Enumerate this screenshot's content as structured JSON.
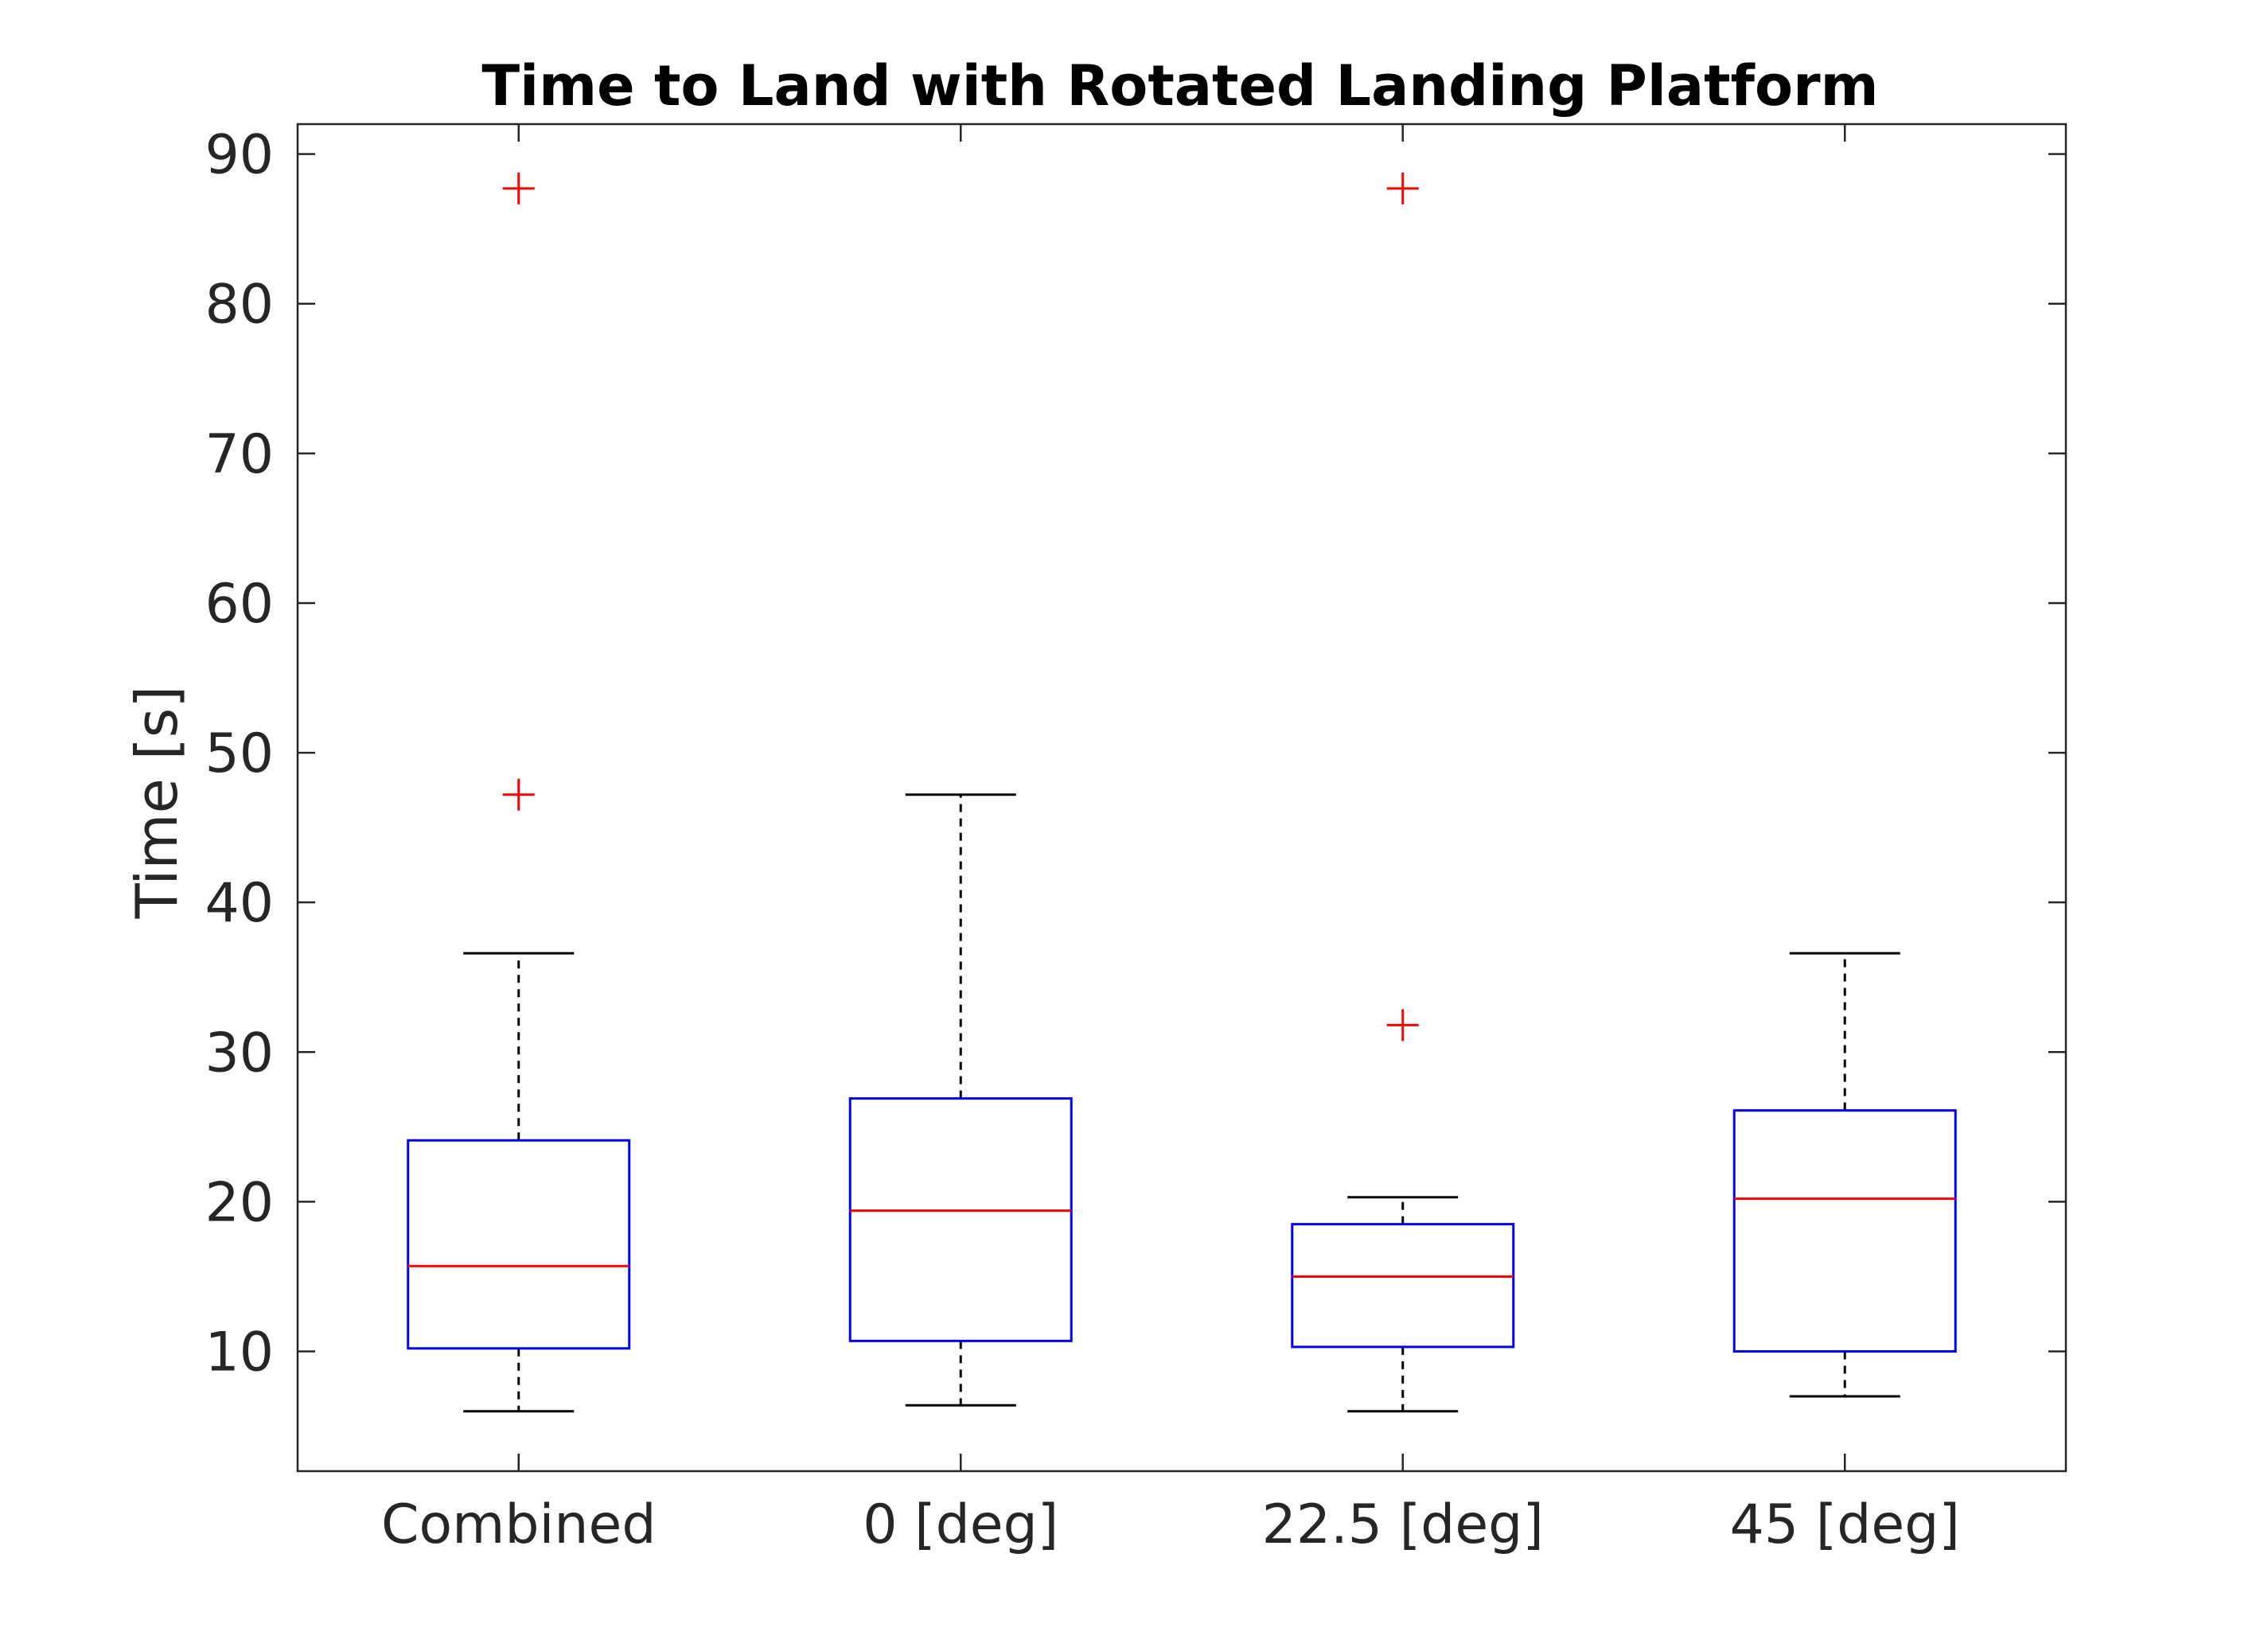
{
  "chart_data": {
    "type": "box",
    "title": "Time to Land with Rotated Landing Platform",
    "xlabel": "",
    "ylabel": "Time [s]",
    "ylim": [
      2,
      92
    ],
    "yticks": [
      10,
      20,
      30,
      40,
      50,
      60,
      70,
      80,
      90
    ],
    "ytick_labels": [
      "10",
      "20",
      "30",
      "40",
      "50",
      "60",
      "70",
      "80",
      "90"
    ],
    "categories": [
      "Combined",
      "0 [deg]",
      "22.5 [deg]",
      "45 [deg]"
    ],
    "boxes": [
      {
        "category": "Combined",
        "whisker_low": 6.0,
        "q1": 10.2,
        "median": 15.7,
        "q3": 24.1,
        "whisker_high": 36.6,
        "outliers": [
          47.2,
          87.7
        ]
      },
      {
        "category": "0 [deg]",
        "whisker_low": 6.4,
        "q1": 10.7,
        "median": 19.4,
        "q3": 26.9,
        "whisker_high": 47.2,
        "outliers": []
      },
      {
        "category": "22.5 [deg]",
        "whisker_low": 6.0,
        "q1": 10.3,
        "median": 15.0,
        "q3": 18.5,
        "whisker_high": 20.3,
        "outliers": [
          31.8,
          87.7
        ]
      },
      {
        "category": "45 [deg]",
        "whisker_low": 7.0,
        "q1": 10.0,
        "median": 20.2,
        "q3": 26.1,
        "whisker_high": 36.6,
        "outliers": []
      }
    ],
    "colors": {
      "box": "#0000ff",
      "median": "#ff0000",
      "outlier": "#ff0000",
      "whisker": "#000000",
      "axis": "#262626"
    },
    "grid": false,
    "legend": "none"
  }
}
